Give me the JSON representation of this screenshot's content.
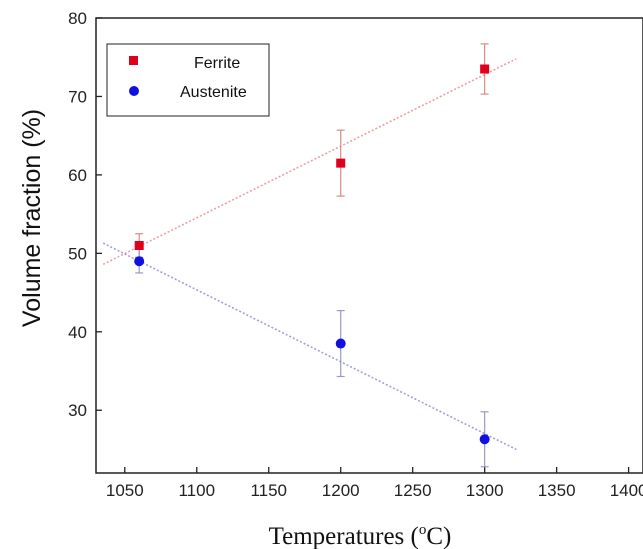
{
  "chart_data": {
    "type": "scatter",
    "xlabel": "Temperatures (",
    "xlabel_unit": "C)",
    "xlabel_super": "o",
    "ylabel": "Volume fraction (%)",
    "xlim": [
      1030,
      1410
    ],
    "ylim": [
      22,
      80
    ],
    "x_ticks": [
      1050,
      1100,
      1150,
      1200,
      1250,
      1300,
      1350,
      1400
    ],
    "y_ticks": [
      30,
      40,
      50,
      60,
      70,
      80
    ],
    "legend_position": "top-left",
    "series": [
      {
        "name": "Ferrite",
        "marker": "square",
        "color": "#e0001b",
        "x": [
          1060,
          1200,
          1300
        ],
        "y": [
          51.0,
          61.5,
          73.5
        ],
        "error": [
          1.5,
          4.2,
          3.2
        ],
        "trend": {
          "x": [
            1035,
            1322
          ],
          "y": [
            48.6,
            74.8
          ]
        }
      },
      {
        "name": "Austenite",
        "marker": "circle",
        "color": "#1010e0",
        "x": [
          1060,
          1200,
          1300
        ],
        "y": [
          49.0,
          38.5,
          26.3
        ],
        "error": [
          1.5,
          4.2,
          3.5
        ],
        "trend": {
          "x": [
            1035,
            1322
          ],
          "y": [
            51.3,
            25.0
          ]
        }
      }
    ]
  }
}
